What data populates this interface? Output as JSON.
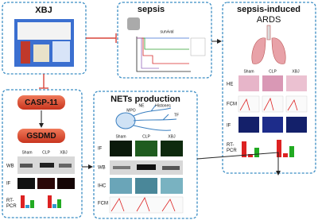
{
  "panels": {
    "xbj": {
      "title": "XBJ"
    },
    "sepsis": {
      "title": "sepsis",
      "chart_label": "survival"
    },
    "ards": {
      "title": "sepsis-induced",
      "subtitle": "ARDS",
      "groups": [
        "Sham",
        "CLP",
        "XBJ"
      ],
      "rows": [
        "HE",
        "FCM",
        "IF"
      ],
      "rt_pcr": [
        "RT-",
        "PCR"
      ]
    },
    "pyroptosis": {
      "steps": [
        "CASP-11",
        "GSDMD"
      ],
      "groups": [
        "Sham",
        "CLP",
        "XBJ"
      ],
      "rows": [
        "WB",
        "IF"
      ],
      "rt_pcr": [
        "RT-",
        "PCR"
      ]
    },
    "nets": {
      "title": "NETs production",
      "labels": [
        "MPO",
        "NE",
        "Histones",
        "TF"
      ],
      "groups": [
        "Sham",
        "CLP",
        "XBJ"
      ],
      "rows": [
        "IF",
        "WB",
        "IHC",
        "FCM"
      ]
    }
  }
}
